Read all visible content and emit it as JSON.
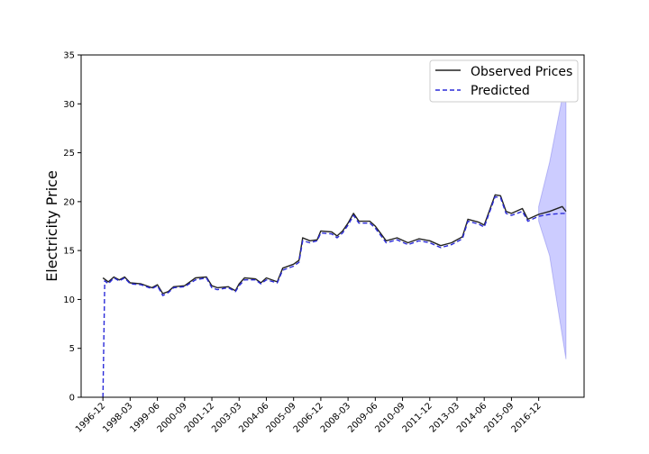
{
  "chart_data": {
    "type": "line",
    "title": "",
    "xlabel": "",
    "ylabel": "Electricity Price",
    "ylim": [
      0,
      35
    ],
    "yticks": [
      0,
      5,
      10,
      15,
      20,
      25,
      30,
      35
    ],
    "xticks": [
      "1996-12",
      "1998-03",
      "1999-06",
      "2000-09",
      "2001-12",
      "2003-03",
      "2004-06",
      "2005-09",
      "2006-12",
      "2008-03",
      "2009-06",
      "2010-09",
      "2011-12",
      "2013-03",
      "2014-06",
      "2015-09",
      "2016-12"
    ],
    "x_range": [
      "1995-12",
      "2019-01"
    ],
    "grid": false,
    "legend_position": "top-right",
    "colors": {
      "observed": "#222222",
      "predicted": "#2b2bd9",
      "band": "#8080ff"
    },
    "series": [
      {
        "name": "Observed Prices",
        "style": "solid",
        "points": [
          [
            "1996-12",
            12.2
          ],
          [
            "1997-03",
            11.8
          ],
          [
            "1997-06",
            12.3
          ],
          [
            "1997-09",
            12.0
          ],
          [
            "1997-12",
            12.3
          ],
          [
            "1998-03",
            11.7
          ],
          [
            "1998-09",
            11.6
          ],
          [
            "1999-03",
            11.2
          ],
          [
            "1999-06",
            11.5
          ],
          [
            "1999-09",
            10.6
          ],
          [
            "1999-12",
            10.8
          ],
          [
            "2000-03",
            11.3
          ],
          [
            "2000-09",
            11.4
          ],
          [
            "2001-03",
            12.2
          ],
          [
            "2001-09",
            12.3
          ],
          [
            "2001-12",
            11.4
          ],
          [
            "2002-03",
            11.2
          ],
          [
            "2002-09",
            11.3
          ],
          [
            "2003-01",
            10.9
          ],
          [
            "2003-03",
            11.6
          ],
          [
            "2003-06",
            12.2
          ],
          [
            "2003-12",
            12.1
          ],
          [
            "2004-03",
            11.7
          ],
          [
            "2004-06",
            12.2
          ],
          [
            "2004-12",
            11.8
          ],
          [
            "2005-03",
            13.2
          ],
          [
            "2005-09",
            13.6
          ],
          [
            "2005-12",
            14.0
          ],
          [
            "2006-02",
            16.3
          ],
          [
            "2006-06",
            16.0
          ],
          [
            "2006-10",
            16.1
          ],
          [
            "2006-12",
            17.0
          ],
          [
            "2007-06",
            16.9
          ],
          [
            "2007-09",
            16.5
          ],
          [
            "2007-12",
            17.0
          ],
          [
            "2008-03",
            17.8
          ],
          [
            "2008-06",
            18.8
          ],
          [
            "2008-09",
            18.0
          ],
          [
            "2009-03",
            18.0
          ],
          [
            "2009-06",
            17.5
          ],
          [
            "2009-12",
            16.0
          ],
          [
            "2010-06",
            16.3
          ],
          [
            "2010-12",
            15.8
          ],
          [
            "2011-06",
            16.2
          ],
          [
            "2011-12",
            16.0
          ],
          [
            "2012-06",
            15.5
          ],
          [
            "2012-12",
            15.8
          ],
          [
            "2013-06",
            16.4
          ],
          [
            "2013-09",
            18.2
          ],
          [
            "2014-03",
            17.9
          ],
          [
            "2014-06",
            17.6
          ],
          [
            "2014-12",
            20.7
          ],
          [
            "2015-03",
            20.6
          ],
          [
            "2015-06",
            19.0
          ],
          [
            "2015-09",
            18.8
          ],
          [
            "2016-03",
            19.3
          ],
          [
            "2016-06",
            18.2
          ],
          [
            "2016-12",
            18.7
          ],
          [
            "2017-06",
            19.0
          ],
          [
            "2018-01",
            19.5
          ],
          [
            "2018-03",
            19.0
          ]
        ]
      },
      {
        "name": "Predicted",
        "style": "dashed",
        "points": [
          [
            "1996-12",
            0.0
          ],
          [
            "1997-01",
            11.9
          ],
          [
            "1997-03",
            11.6
          ],
          [
            "1997-06",
            12.2
          ],
          [
            "1997-09",
            11.9
          ],
          [
            "1997-12",
            12.2
          ],
          [
            "1998-03",
            11.6
          ],
          [
            "1998-09",
            11.5
          ],
          [
            "1999-03",
            11.1
          ],
          [
            "1999-06",
            11.4
          ],
          [
            "1999-09",
            10.4
          ],
          [
            "1999-12",
            10.7
          ],
          [
            "2000-03",
            11.2
          ],
          [
            "2000-09",
            11.3
          ],
          [
            "2001-03",
            12.0
          ],
          [
            "2001-09",
            12.2
          ],
          [
            "2001-12",
            11.2
          ],
          [
            "2002-03",
            11.0
          ],
          [
            "2002-09",
            11.2
          ],
          [
            "2003-01",
            10.8
          ],
          [
            "2003-03",
            11.4
          ],
          [
            "2003-06",
            12.0
          ],
          [
            "2003-12",
            12.0
          ],
          [
            "2004-03",
            11.6
          ],
          [
            "2004-06",
            12.0
          ],
          [
            "2004-12",
            11.7
          ],
          [
            "2005-03",
            13.0
          ],
          [
            "2005-09",
            13.4
          ],
          [
            "2005-12",
            13.8
          ],
          [
            "2006-02",
            16.0
          ],
          [
            "2006-06",
            15.8
          ],
          [
            "2006-10",
            16.0
          ],
          [
            "2006-12",
            16.8
          ],
          [
            "2007-06",
            16.7
          ],
          [
            "2007-09",
            16.3
          ],
          [
            "2007-12",
            16.8
          ],
          [
            "2008-03",
            17.6
          ],
          [
            "2008-06",
            18.6
          ],
          [
            "2008-09",
            17.8
          ],
          [
            "2009-03",
            17.8
          ],
          [
            "2009-06",
            17.3
          ],
          [
            "2009-12",
            15.8
          ],
          [
            "2010-06",
            16.1
          ],
          [
            "2010-12",
            15.6
          ],
          [
            "2011-06",
            16.0
          ],
          [
            "2011-12",
            15.8
          ],
          [
            "2012-06",
            15.3
          ],
          [
            "2012-12",
            15.6
          ],
          [
            "2013-06",
            16.2
          ],
          [
            "2013-09",
            18.0
          ],
          [
            "2014-03",
            17.7
          ],
          [
            "2014-06",
            17.4
          ],
          [
            "2014-12",
            20.5
          ],
          [
            "2015-03",
            20.4
          ],
          [
            "2015-06",
            18.8
          ],
          [
            "2015-09",
            18.6
          ],
          [
            "2016-03",
            19.0
          ],
          [
            "2016-06",
            18.0
          ],
          [
            "2016-12",
            18.5
          ],
          [
            "2017-06",
            18.7
          ],
          [
            "2018-01",
            18.8
          ],
          [
            "2018-03",
            18.8
          ]
        ]
      }
    ],
    "confidence_band": {
      "x": [
        "2016-12",
        "2017-06",
        "2018-03"
      ],
      "lower": [
        18.0,
        14.5,
        3.9
      ],
      "upper": [
        19.5,
        24.0,
        32.6
      ]
    }
  }
}
